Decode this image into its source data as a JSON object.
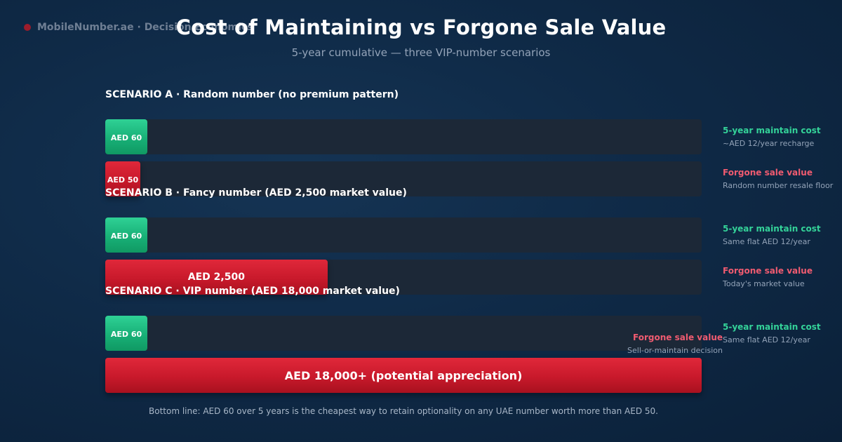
{
  "brand": {
    "text": "MobileNumber.ae · Decision Economics"
  },
  "title": "Cost of Maintaining vs Forgone Sale Value",
  "subtitle": "5-year cumulative — three VIP-number scenarios",
  "colors": {
    "maintain": "#1bbf82",
    "forgone": "#d11f31",
    "track": "#1c2837"
  },
  "chart_data": {
    "type": "bar",
    "orientation": "horizontal",
    "title": "Cost of Maintaining vs Forgone Sale Value",
    "subtitle": "5-year cumulative — three VIP-number scenarios",
    "scale_max": 18000,
    "scenarios": [
      {
        "label": "SCENARIO A · Random number (no premium pattern)",
        "maintain": {
          "value": 60,
          "label": "AED 60",
          "title": "5-year maintain cost",
          "note": "~AED 12/year recharge"
        },
        "forgone": {
          "value": 50,
          "label": "AED 50",
          "title": "Forgone sale value",
          "note": "Random number resale floor"
        }
      },
      {
        "label": "SCENARIO B · Fancy number (AED 2,500 market value)",
        "maintain": {
          "value": 60,
          "label": "AED 60",
          "title": "5-year maintain cost",
          "note": "Same flat AED 12/year"
        },
        "forgone": {
          "value": 2500,
          "label": "AED 2,500",
          "title": "Forgone sale value",
          "note": "Today's market value"
        }
      },
      {
        "label": "SCENARIO C · VIP number (AED 18,000 market value)",
        "maintain": {
          "value": 60,
          "label": "AED 60",
          "title": "5-year maintain cost",
          "note": "Same flat AED 12/year"
        },
        "forgone": {
          "value": 18000,
          "label": "AED 18,000+ (potential appreciation)",
          "title": "Forgone sale value",
          "note": "Sell-or-maintain decision"
        }
      }
    ]
  },
  "footer": "Bottom line: AED 60 over 5 years is the cheapest way to retain optionality on any UAE number worth more than AED 50."
}
